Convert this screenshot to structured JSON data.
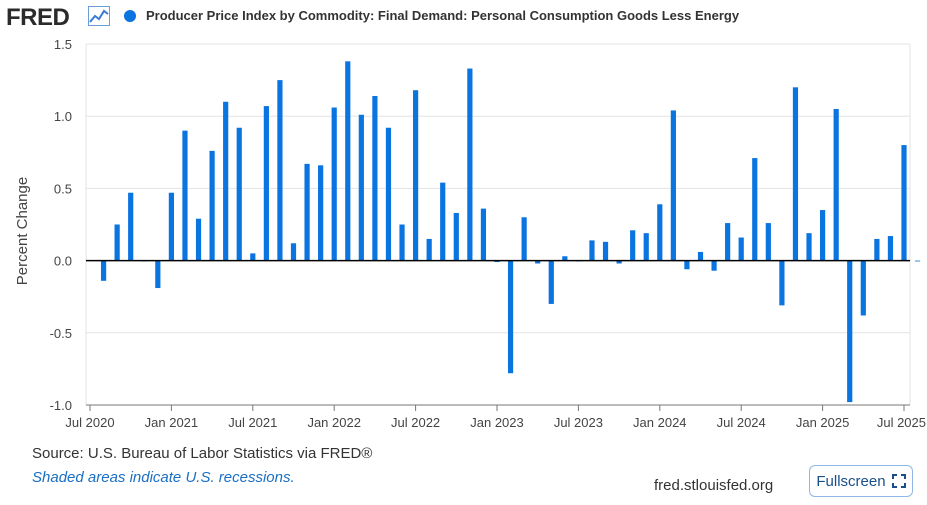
{
  "header": {
    "logo_text": "FRED",
    "logo_icon": "trend-line-icon",
    "series_title": "Producer Price Index by Commodity: Final Demand: Personal Consumption Goods Less Energy"
  },
  "colors": {
    "bar": "#0a74e0",
    "grid": "#e3e3e3",
    "zero_line": "#000000"
  },
  "footer": {
    "source": "Source: U.S. Bureau of Labor Statistics via FRED®",
    "shaded_note": "Shaded areas indicate U.S. recessions.",
    "url": "fred.stlouisfed.org",
    "fullscreen_label": "Fullscreen",
    "fullscreen_icon": "fullscreen-corners-icon"
  },
  "chart_data": {
    "type": "bar",
    "title": "Producer Price Index by Commodity: Final Demand: Personal Consumption Goods Less Energy",
    "ylabel": "Percent Change",
    "xlabel": "",
    "ylim": [
      -1.0,
      1.5
    ],
    "yticks": [
      1.5,
      1.0,
      0.5,
      0.0,
      -0.5,
      -1.0
    ],
    "ytick_labels": [
      "1.5",
      "1.0",
      "0.5",
      "0.0",
      "-0.5",
      "-1.0"
    ],
    "xticks": [
      {
        "date": "2020-07",
        "label": "Jul 2020"
      },
      {
        "date": "2021-01",
        "label": "Jan 2021"
      },
      {
        "date": "2021-07",
        "label": "Jul 2021"
      },
      {
        "date": "2022-01",
        "label": "Jan 2022"
      },
      {
        "date": "2022-07",
        "label": "Jul 2022"
      },
      {
        "date": "2023-01",
        "label": "Jan 2023"
      },
      {
        "date": "2023-07",
        "label": "Jul 2023"
      },
      {
        "date": "2024-01",
        "label": "Jan 2024"
      },
      {
        "date": "2024-07",
        "label": "Jul 2024"
      },
      {
        "date": "2025-01",
        "label": "Jan 2025"
      },
      {
        "date": "2025-07",
        "label": "Jul 2025"
      }
    ],
    "grid": true,
    "x": [
      "2020-08",
      "2020-09",
      "2020-10",
      "2020-11",
      "2020-12",
      "2021-01",
      "2021-02",
      "2021-03",
      "2021-04",
      "2021-05",
      "2021-06",
      "2021-07",
      "2021-08",
      "2021-09",
      "2021-10",
      "2021-11",
      "2021-12",
      "2022-01",
      "2022-02",
      "2022-03",
      "2022-04",
      "2022-05",
      "2022-06",
      "2022-07",
      "2022-08",
      "2022-09",
      "2022-10",
      "2022-11",
      "2022-12",
      "2023-01",
      "2023-02",
      "2023-03",
      "2023-04",
      "2023-05",
      "2023-06",
      "2023-07",
      "2023-08",
      "2023-09",
      "2023-10",
      "2023-11",
      "2023-12",
      "2024-01",
      "2024-02",
      "2024-03",
      "2024-04",
      "2024-05",
      "2024-06",
      "2024-07",
      "2024-08",
      "2024-09",
      "2024-10",
      "2024-11",
      "2024-12",
      "2025-01",
      "2025-02",
      "2025-03",
      "2025-04",
      "2025-05",
      "2025-06",
      "2025-07",
      "2025-08"
    ],
    "values": [
      -0.14,
      0.25,
      0.47,
      0.0,
      -0.19,
      0.47,
      0.9,
      0.29,
      0.76,
      1.1,
      0.92,
      0.05,
      1.07,
      1.25,
      0.12,
      0.67,
      0.66,
      1.06,
      1.38,
      1.01,
      1.14,
      0.92,
      0.25,
      1.18,
      0.15,
      0.54,
      0.33,
      1.33,
      0.36,
      -0.01,
      -0.78,
      0.3,
      -0.02,
      -0.3,
      0.03,
      0.0,
      0.14,
      0.13,
      -0.02,
      0.21,
      0.19,
      0.39,
      1.04,
      -0.06,
      0.06,
      -0.07,
      0.26,
      0.16,
      0.71,
      0.26,
      -0.31,
      1.2,
      0.19,
      0.35,
      1.05,
      -0.98,
      -0.38,
      0.15,
      0.17,
      0.8,
      0.0
    ]
  }
}
